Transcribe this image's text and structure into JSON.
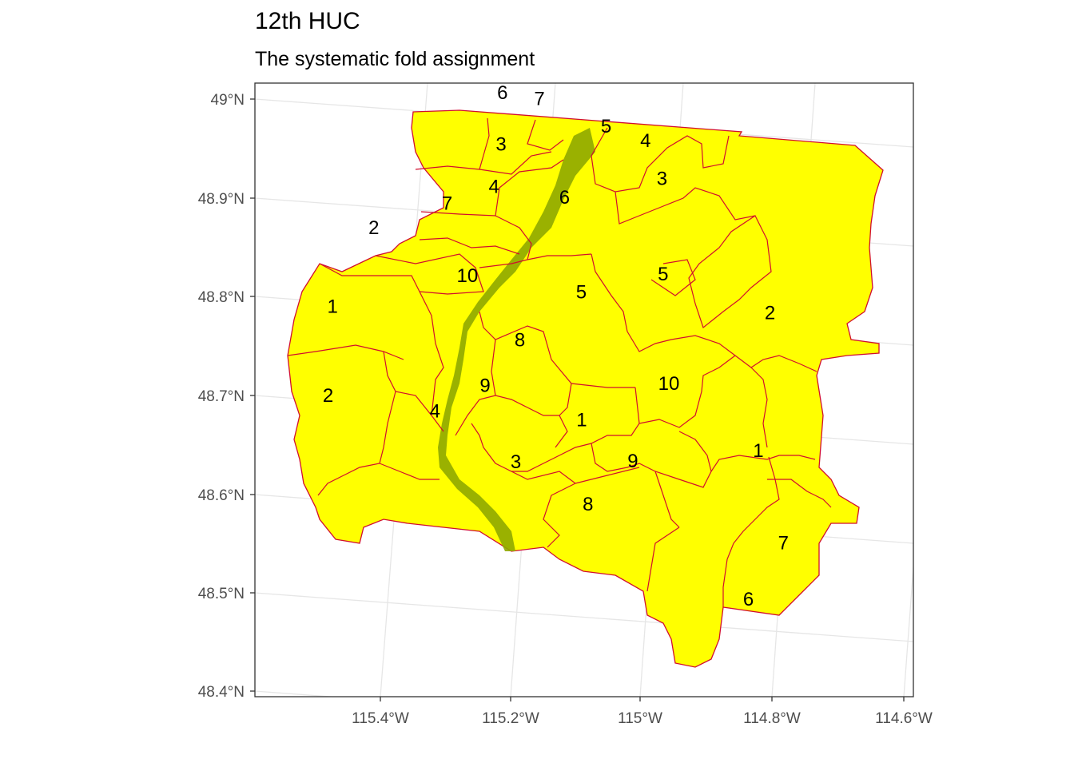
{
  "title": "12th HUC",
  "subtitle": "The systematic fold assignment",
  "colors": {
    "fill": "#ffff00",
    "valley": "#8fa800",
    "boundary": "#d10e2e",
    "grid": "#e6e6e6",
    "axis_text": "#4d4d4d",
    "panel_border": "#333333"
  },
  "axes": {
    "y_labels": [
      "49°N",
      "48.9°N",
      "48.8°N",
      "48.7°N",
      "48.6°N",
      "48.5°N",
      "48.4°N"
    ],
    "x_labels": [
      "115.4°W",
      "115.2°W",
      "115°W",
      "114.8°W",
      "114.6°W"
    ]
  },
  "folds": [
    {
      "label": "6",
      "lon": -115.292,
      "lat": 48.949
    },
    {
      "label": "7",
      "lon": -115.238,
      "lat": 48.956
    },
    {
      "label": "5",
      "lon": -115.135,
      "lat": 48.953
    },
    {
      "label": "4",
      "lon": -115.075,
      "lat": 48.953
    },
    {
      "label": "3",
      "lon": -115.04,
      "lat": 48.923
    },
    {
      "label": "3",
      "lon": -115.278,
      "lat": 48.9
    },
    {
      "label": "6",
      "lon": -115.172,
      "lat": 48.872
    },
    {
      "label": "4",
      "lon": -115.275,
      "lat": 48.858
    },
    {
      "label": "7",
      "lon": -115.336,
      "lat": 48.826
    },
    {
      "label": "5",
      "lon": -115.009,
      "lat": 48.834
    },
    {
      "label": "2",
      "lon": -114.846,
      "lat": 48.834
    },
    {
      "label": "2",
      "lon": -115.432,
      "lat": 48.778
    },
    {
      "label": "5",
      "lon": -115.119,
      "lat": 48.789
    },
    {
      "label": "10",
      "lon": -115.285,
      "lat": 48.765
    },
    {
      "label": "10",
      "lon": -114.967,
      "lat": 48.733
    },
    {
      "label": "8",
      "lon": -115.191,
      "lat": 48.723
    },
    {
      "label": "1",
      "lon": -114.82,
      "lat": 48.701
    },
    {
      "label": "1",
      "lon": -115.466,
      "lat": 48.69
    },
    {
      "label": "9",
      "lon": -115.226,
      "lat": 48.668
    },
    {
      "label": "1",
      "lon": -115.079,
      "lat": 48.669
    },
    {
      "label": "9",
      "lon": -114.994,
      "lat": 48.648
    },
    {
      "label": "4",
      "lon": -115.289,
      "lat": 48.627
    },
    {
      "label": "7",
      "lon": -114.756,
      "lat": 48.623
    },
    {
      "label": "2",
      "lon": -115.445,
      "lat": 48.605
    },
    {
      "label": "3",
      "lon": -115.159,
      "lat": 48.607
    },
    {
      "label": "8",
      "lon": -115.044,
      "lat": 48.592
    },
    {
      "label": "6",
      "lon": -114.788,
      "lat": 48.558
    }
  ]
}
